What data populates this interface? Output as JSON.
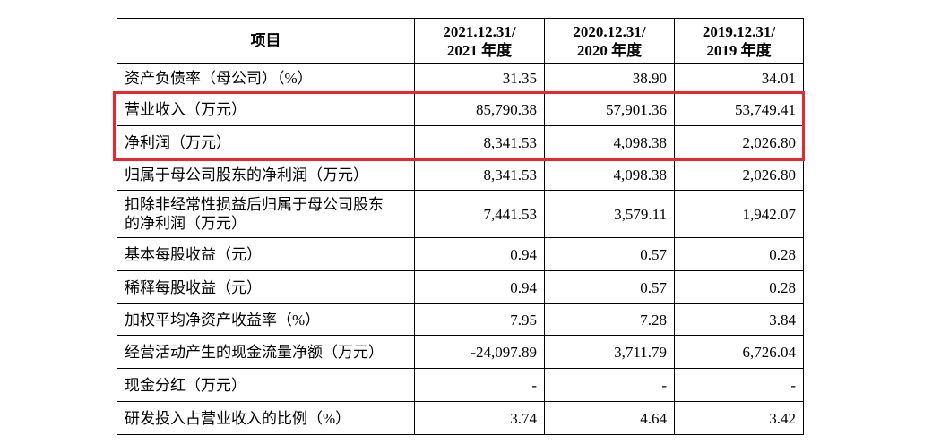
{
  "table": {
    "header": [
      [
        "项目"
      ],
      [
        "2021.12.31/",
        "2021 年度"
      ],
      [
        "2020.12.31/",
        "2020 年度"
      ],
      [
        "2019.12.31/",
        "2019 年度"
      ]
    ],
    "rows": [
      [
        "资产负债率（母公司）（%）",
        "31.35",
        "38.90",
        "34.01"
      ],
      [
        "营业收入（万元）",
        "85,790.38",
        "57,901.36",
        "53,749.41"
      ],
      [
        "净利润（万元）",
        "8,341.53",
        "4,098.38",
        "2,026.80"
      ],
      [
        "归属于母公司股东的净利润（万元）",
        "8,341.53",
        "4,098.38",
        "2,026.80"
      ],
      [
        "扣除非经常性损益后归属于母公司股东的净利润（万元）",
        "7,441.53",
        "3,579.11",
        "1,942.07"
      ],
      [
        "基本每股收益（元）",
        "0.94",
        "0.57",
        "0.28"
      ],
      [
        "稀释每股收益（元）",
        "0.94",
        "0.57",
        "0.28"
      ],
      [
        "加权平均净资产收益率（%）",
        "7.95",
        "7.28",
        "3.84"
      ],
      [
        "经营活动产生的现金流量净额（万元）",
        "-24,097.89",
        "3,711.79",
        "6,726.04"
      ],
      [
        "现金分红（万元）",
        "-",
        "-",
        "-"
      ],
      [
        "研发投入占营业收入的比例（%）",
        "3.74",
        "4.64",
        "3.42"
      ]
    ]
  }
}
